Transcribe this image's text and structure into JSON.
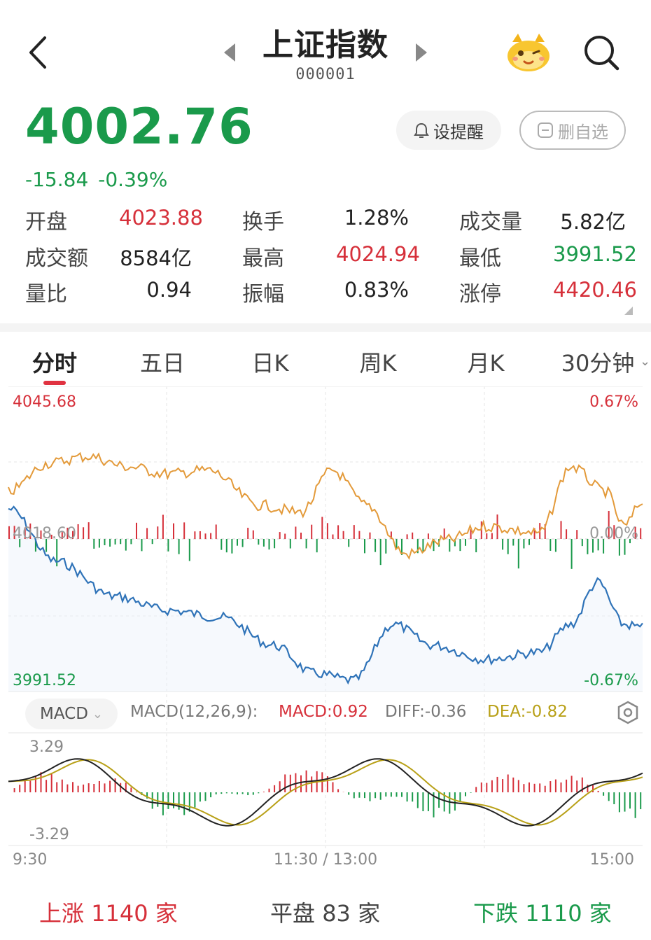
{
  "header": {
    "title": "上证指数",
    "code": "000001"
  },
  "quote": {
    "price": "4002.76",
    "change": "-15.84",
    "change_pct": "-0.39%"
  },
  "actions": {
    "alert_label": "设提醒",
    "remove_label": "删自选"
  },
  "stats": [
    {
      "label": "开盘",
      "value": "4023.88",
      "tone": "red"
    },
    {
      "label": "换手",
      "value": "1.28%",
      "tone": "dark"
    },
    {
      "label": "成交量",
      "value": "5.82亿",
      "tone": "dark"
    },
    {
      "label": "成交额",
      "value": "8584亿",
      "tone": "dark"
    },
    {
      "label": "最高",
      "value": "4024.94",
      "tone": "red"
    },
    {
      "label": "最低",
      "value": "3991.52",
      "tone": "green"
    },
    {
      "label": "量比",
      "value": "0.94",
      "tone": "dark"
    },
    {
      "label": "振幅",
      "value": "0.83%",
      "tone": "dark"
    },
    {
      "label": "涨停",
      "value": "4420.46",
      "tone": "red"
    }
  ],
  "tabs": [
    "分时",
    "五日",
    "日K",
    "周K",
    "月K",
    "30分钟"
  ],
  "chart": {
    "y_top": "4045.68",
    "y_mid": "4018.60",
    "y_bottom": "3991.52",
    "pct_top": "0.67%",
    "pct_mid": "0.00%",
    "pct_bottom": "-0.67%",
    "time_start": "9:30",
    "time_mid": "11:30 / 13:00",
    "time_end": "15:00"
  },
  "macd": {
    "chip_label": "MACD",
    "params": "MACD(12,26,9):",
    "macd": "MACD:0.92",
    "diff": "DIFF:-0.36",
    "dea": "DEA:-0.82",
    "y_top": "3.29",
    "y_bottom": "-3.29"
  },
  "breadth": {
    "up_label": "上涨",
    "up_count": "1140",
    "flat_label": "平盘",
    "flat_count": "83",
    "down_label": "下跌",
    "down_count": "1110",
    "unit": "家"
  },
  "colors": {
    "up": "#d6303a",
    "down": "#1a9a4b",
    "price_line": "#2f73b8",
    "avg_line": "#e39a3a",
    "dea_line": "#b8a017"
  },
  "chart_data": {
    "type": "line",
    "x_range": [
      "9:30",
      "15:00"
    ],
    "ylim": [
      3991.52,
      4045.68
    ],
    "series": [],
    "macd_ylim": [
      -3.29,
      3.29
    ]
  }
}
